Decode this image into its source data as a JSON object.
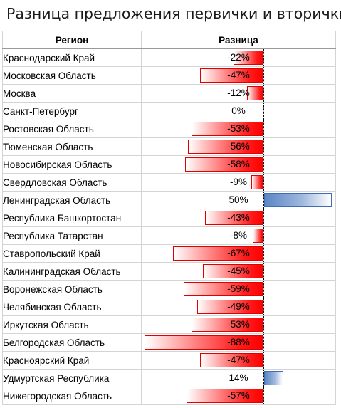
{
  "title": "Разница предложения первички и вторички",
  "table": {
    "headers": [
      "Регион",
      "Разница"
    ]
  },
  "colors": {
    "negative": "#ff0000",
    "positive": "#5b86c6"
  },
  "chart_data": {
    "type": "bar",
    "orientation": "horizontal",
    "title": "Разница предложения первички и вторички",
    "xlabel": "",
    "ylabel": "",
    "xlim": [
      -100,
      100
    ],
    "categories": [
      "Краснодарский Край",
      "Московская Область",
      "Москва",
      "Санкт-Петербург",
      "Ростовская Область",
      "Тюменская Область",
      "Новосибирская Область",
      "Свердловская Область",
      "Ленинградская Область",
      "Республика Башкортостан",
      "Республика Татарстан",
      "Ставропольский Край",
      "Калининградская Область",
      "Воронежская Область",
      "Челябинская Область",
      "Иркутская Область",
      "Белгородская Область",
      "Красноярский Край",
      "Удмуртская Республика",
      "Нижегородская Область"
    ],
    "values": [
      -22,
      -47,
      -12,
      0,
      -53,
      -56,
      -58,
      -9,
      50,
      -43,
      -8,
      -67,
      -45,
      -59,
      -49,
      -53,
      -88,
      -47,
      14,
      -57
    ],
    "labels": [
      "-22%",
      "-47%",
      "-12%",
      "0%",
      "-53%",
      "-56%",
      "-58%",
      "-9%",
      "50%",
      "-43%",
      "-8%",
      "-67%",
      "-45%",
      "-59%",
      "-49%",
      "-53%",
      "-88%",
      "-47%",
      "14%",
      "-57%"
    ],
    "unit": "%"
  }
}
